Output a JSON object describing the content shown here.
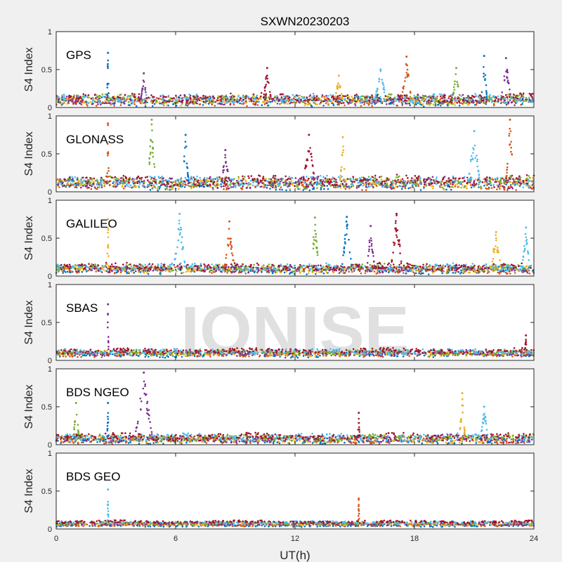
{
  "chart_data": {
    "type": "scatter",
    "title": "SXWN20230203",
    "xlabel": "UT(h)",
    "xlim": [
      0,
      24
    ],
    "x_ticks": [
      "0",
      "6",
      "12",
      "18",
      "24"
    ],
    "watermark": "IONISE",
    "colors": [
      "#0072BD",
      "#D95319",
      "#EDB120",
      "#7E2F8E",
      "#77AC30",
      "#4DBEEE",
      "#A2142F"
    ],
    "panels": [
      {
        "label": "GPS",
        "ylabel": "S4 Index",
        "ylim": [
          0,
          1
        ],
        "y_ticks": [
          "0",
          "0.5",
          "1"
        ],
        "baseline": 0.1,
        "spread": 0.05,
        "spikes": [
          [
            2.6,
            0.72,
            0.08
          ],
          [
            4.4,
            0.45,
            0.3
          ],
          [
            10.6,
            0.52,
            0.4
          ],
          [
            14.2,
            0.42,
            0.4
          ],
          [
            16.3,
            0.5,
            0.6
          ],
          [
            17.6,
            0.67,
            0.5
          ],
          [
            20.1,
            0.52,
            0.4
          ],
          [
            21.5,
            0.68,
            0.3
          ],
          [
            22.6,
            0.65,
            0.5
          ]
        ]
      },
      {
        "label": "GLONASS",
        "ylabel": "S4 Index",
        "ylim": [
          0,
          1
        ],
        "y_ticks": [
          "0",
          "0.5",
          "1"
        ],
        "baseline": 0.12,
        "spread": 0.06,
        "spikes": [
          [
            2.6,
            0.9,
            0.08
          ],
          [
            4.8,
            0.95,
            0.4
          ],
          [
            6.5,
            0.75,
            0.3
          ],
          [
            8.5,
            0.55,
            0.4
          ],
          [
            12.7,
            0.75,
            0.6
          ],
          [
            14.4,
            0.72,
            0.3
          ],
          [
            21.0,
            0.8,
            0.6
          ],
          [
            22.8,
            0.95,
            0.4
          ]
        ]
      },
      {
        "label": "GALILEO",
        "ylabel": "S4 Index",
        "ylim": [
          0,
          1
        ],
        "y_ticks": [
          "0",
          "0.5",
          "1"
        ],
        "baseline": 0.1,
        "spread": 0.04,
        "spikes": [
          [
            2.6,
            0.75,
            0.08
          ],
          [
            6.2,
            0.82,
            0.6
          ],
          [
            8.7,
            0.72,
            0.5
          ],
          [
            13.0,
            0.77,
            0.4
          ],
          [
            14.6,
            0.78,
            0.5
          ],
          [
            15.8,
            0.66,
            0.4
          ],
          [
            17.1,
            0.82,
            0.6
          ],
          [
            22.1,
            0.58,
            0.5
          ],
          [
            23.6,
            0.64,
            0.4
          ]
        ]
      },
      {
        "label": "SBAS",
        "ylabel": "S4 Index",
        "ylim": [
          0,
          1
        ],
        "y_ticks": [
          "0",
          "0.5",
          "1"
        ],
        "baseline": 0.1,
        "spread": 0.03,
        "spikes": [
          [
            2.6,
            0.74,
            0.06
          ],
          [
            23.6,
            0.33,
            0.1
          ]
        ]
      },
      {
        "label": "BDS NGEO",
        "ylabel": "S4 Index",
        "ylim": [
          0,
          1
        ],
        "y_ticks": [
          "0",
          "0.5",
          "1"
        ],
        "baseline": 0.08,
        "spread": 0.04,
        "spikes": [
          [
            1.0,
            0.55,
            0.3
          ],
          [
            2.6,
            0.55,
            0.08
          ],
          [
            4.4,
            0.95,
            0.9
          ],
          [
            15.2,
            0.42,
            0.1
          ],
          [
            20.4,
            0.68,
            0.3
          ],
          [
            21.5,
            0.5,
            0.4
          ]
        ]
      },
      {
        "label": "BDS GEO",
        "ylabel": "S4 Index",
        "ylim": [
          0,
          1
        ],
        "y_ticks": [
          "0",
          "0.5",
          "1"
        ],
        "baseline": 0.07,
        "spread": 0.015,
        "spikes": [
          [
            2.6,
            0.52,
            0.05
          ],
          [
            15.2,
            0.4,
            0.05
          ]
        ]
      }
    ]
  }
}
